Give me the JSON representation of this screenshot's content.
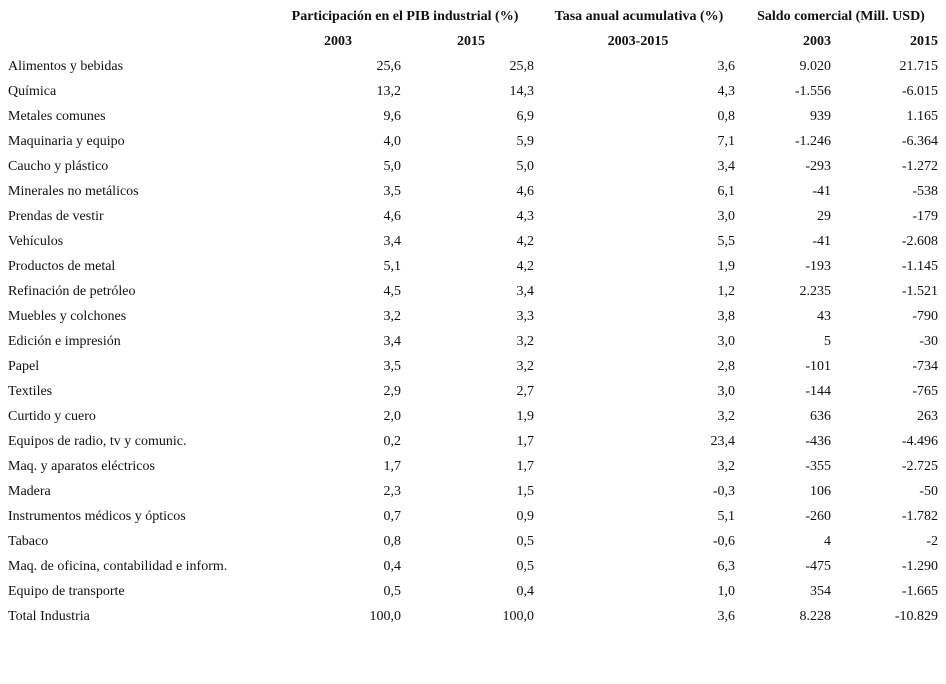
{
  "table": {
    "groups": [
      "Participación en el PIB industrial (%)",
      "Tasa anual acumulativa (%)",
      "Saldo comercial (Mill. USD)"
    ],
    "subheaders": [
      "2003",
      "2015",
      "2003-2015",
      "2003",
      "2015"
    ],
    "rows": [
      [
        "Alimentos y bebidas",
        "25,6",
        "25,8",
        "3,6",
        "9.020",
        "21.715"
      ],
      [
        "Química",
        "13,2",
        "14,3",
        "4,3",
        "-1.556",
        "-6.015"
      ],
      [
        "Metales comunes",
        "9,6",
        "6,9",
        "0,8",
        "939",
        "1.165"
      ],
      [
        "Maquinaria y equipo",
        "4,0",
        "5,9",
        "7,1",
        "-1.246",
        "-6.364"
      ],
      [
        "Caucho y plástico",
        "5,0",
        "5,0",
        "3,4",
        "-293",
        "-1.272"
      ],
      [
        "Minerales no metálicos",
        "3,5",
        "4,6",
        "6,1",
        "-41",
        "-538"
      ],
      [
        "Prendas de vestir",
        "4,6",
        "4,3",
        "3,0",
        "29",
        "-179"
      ],
      [
        "Vehículos",
        "3,4",
        "4,2",
        "5,5",
        "-41",
        "-2.608"
      ],
      [
        "Productos de metal",
        "5,1",
        "4,2",
        "1,9",
        "-193",
        "-1.145"
      ],
      [
        "Refinación de petróleo",
        "4,5",
        "3,4",
        "1,2",
        "2.235",
        "-1.521"
      ],
      [
        "Muebles y colchones",
        "3,2",
        "3,3",
        "3,8",
        "43",
        "-790"
      ],
      [
        "Edición e impresión",
        "3,4",
        "3,2",
        "3,0",
        "5",
        "-30"
      ],
      [
        "Papel",
        "3,5",
        "3,2",
        "2,8",
        "-101",
        "-734"
      ],
      [
        "Textiles",
        "2,9",
        "2,7",
        "3,0",
        "-144",
        "-765"
      ],
      [
        "Curtido y cuero",
        "2,0",
        "1,9",
        "3,2",
        "636",
        "263"
      ],
      [
        "Equipos de radio, tv y comunic.",
        "0,2",
        "1,7",
        "23,4",
        "-436",
        "-4.496"
      ],
      [
        "Maq. y aparatos eléctricos",
        "1,7",
        "1,7",
        "3,2",
        "-355",
        "-2.725"
      ],
      [
        "Madera",
        "2,3",
        "1,5",
        "-0,3",
        "106",
        "-50"
      ],
      [
        "Instrumentos médicos y ópticos",
        "0,7",
        "0,9",
        "5,1",
        "-260",
        "-1.782"
      ],
      [
        "Tabaco",
        "0,8",
        "0,5",
        "-0,6",
        "4",
        "-2"
      ],
      [
        "Maq. de oficina, contabilidad e inform.",
        "0,4",
        "0,5",
        "6,3",
        "-475",
        "-1.290"
      ],
      [
        "Equipo de transporte",
        "0,5",
        "0,4",
        "1,0",
        "354",
        "-1.665"
      ],
      [
        "Total Industria",
        "100,0",
        "100,0",
        "3,6",
        "8.228",
        "-10.829"
      ]
    ]
  }
}
